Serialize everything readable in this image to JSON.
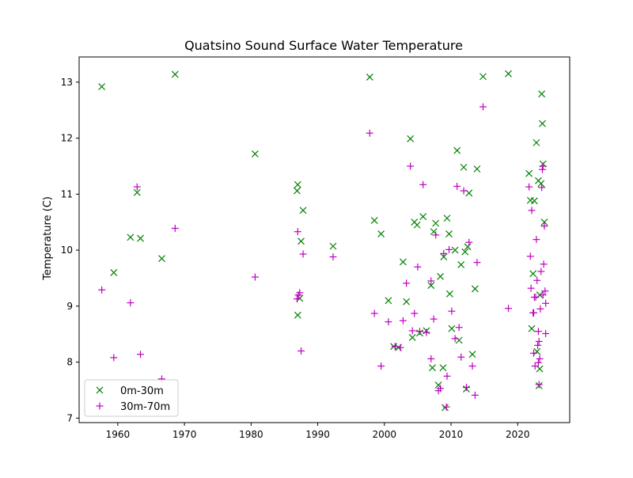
{
  "chart_data": {
    "type": "scatter",
    "title": "Quatsino Sound Surface Water Temperature",
    "xlabel": "",
    "ylabel": "Temperature (C)",
    "xlim": [
      1954.2,
      2027.8
    ],
    "ylim": [
      6.92,
      13.45
    ],
    "x_ticks": [
      1960,
      1970,
      1980,
      1990,
      2000,
      2010,
      2020
    ],
    "y_ticks": [
      7,
      8,
      9,
      10,
      11,
      12,
      13
    ],
    "grid": false,
    "legend_position": "lower-left",
    "series": [
      {
        "name": "0m-30m",
        "color": "#008000",
        "marker": "x",
        "points": [
          [
            1957.6,
            12.92
          ],
          [
            1959.4,
            9.6
          ],
          [
            1961.9,
            10.23
          ],
          [
            1962.9,
            11.03
          ],
          [
            1963.4,
            10.21
          ],
          [
            1966.6,
            9.85
          ],
          [
            1968.6,
            13.14
          ],
          [
            1980.6,
            11.72
          ],
          [
            1986.9,
            11.06
          ],
          [
            1987.0,
            11.17
          ],
          [
            1987.0,
            8.84
          ],
          [
            1987.3,
            9.14
          ],
          [
            1987.5,
            10.16
          ],
          [
            1987.8,
            10.71
          ],
          [
            1992.3,
            10.07
          ],
          [
            1997.8,
            13.09
          ],
          [
            1998.5,
            10.53
          ],
          [
            1999.5,
            10.29
          ],
          [
            2000.6,
            9.1
          ],
          [
            2001.4,
            8.28
          ],
          [
            2002.1,
            8.26
          ],
          [
            2002.8,
            9.79
          ],
          [
            2003.3,
            9.08
          ],
          [
            2003.9,
            11.99
          ],
          [
            2004.2,
            8.44
          ],
          [
            2004.5,
            10.5
          ],
          [
            2004.9,
            10.45
          ],
          [
            2005.3,
            8.52
          ],
          [
            2005.8,
            10.6
          ],
          [
            2006.3,
            8.56
          ],
          [
            2007.0,
            9.37
          ],
          [
            2007.4,
            10.33
          ],
          [
            2007.7,
            10.48
          ],
          [
            2008.1,
            7.59
          ],
          [
            2008.4,
            9.53
          ],
          [
            2008.9,
            9.88
          ],
          [
            2009.4,
            10.57
          ],
          [
            2009.7,
            10.29
          ],
          [
            2010.1,
            8.6
          ],
          [
            2010.6,
            10.0
          ],
          [
            2010.9,
            11.78
          ],
          [
            2011.2,
            8.39
          ],
          [
            2011.5,
            9.74
          ],
          [
            2011.9,
            11.48
          ],
          [
            2012.3,
            7.52
          ],
          [
            2012.7,
            11.02
          ],
          [
            2013.2,
            8.14
          ],
          [
            2013.6,
            9.31
          ],
          [
            2013.9,
            11.45
          ],
          [
            2014.8,
            13.1
          ],
          [
            2018.6,
            13.15
          ],
          [
            2021.7,
            11.37
          ],
          [
            2021.9,
            10.89
          ],
          [
            2022.1,
            8.6
          ],
          [
            2022.3,
            9.58
          ],
          [
            2022.5,
            10.88
          ],
          [
            2022.8,
            11.92
          ],
          [
            2022.9,
            8.19
          ],
          [
            2023.1,
            11.24
          ],
          [
            2023.2,
            7.58
          ],
          [
            2023.3,
            7.88
          ],
          [
            2023.5,
            11.19
          ],
          [
            2023.6,
            12.79
          ],
          [
            2023.7,
            12.26
          ],
          [
            2023.8,
            11.54
          ],
          [
            2024.0,
            10.5
          ],
          [
            2023.3,
            9.2
          ],
          [
            2008.8,
            7.9
          ],
          [
            2012.1,
            9.97
          ],
          [
            2009.1,
            7.19
          ],
          [
            2012.5,
            10.06
          ],
          [
            2007.2,
            7.9
          ],
          [
            2009.8,
            9.22
          ]
        ]
      },
      {
        "name": "30m-70m",
        "color": "#bf00bf",
        "marker": "+",
        "points": [
          [
            1957.6,
            9.29
          ],
          [
            1959.4,
            8.08
          ],
          [
            1961.9,
            9.06
          ],
          [
            1962.9,
            11.13
          ],
          [
            1963.4,
            8.14
          ],
          [
            1966.6,
            7.7
          ],
          [
            1968.6,
            10.39
          ],
          [
            1980.6,
            9.52
          ],
          [
            1986.9,
            9.13
          ],
          [
            1987.0,
            10.33
          ],
          [
            1987.1,
            9.2
          ],
          [
            1987.3,
            9.24
          ],
          [
            1987.5,
            8.2
          ],
          [
            1987.8,
            9.93
          ],
          [
            1992.3,
            9.88
          ],
          [
            1997.8,
            12.09
          ],
          [
            1998.5,
            8.87
          ],
          [
            1999.5,
            7.93
          ],
          [
            2000.6,
            8.72
          ],
          [
            2001.6,
            8.28
          ],
          [
            2002.4,
            8.26
          ],
          [
            2002.8,
            8.74
          ],
          [
            2003.3,
            9.41
          ],
          [
            2003.9,
            11.5
          ],
          [
            2004.2,
            8.56
          ],
          [
            2004.5,
            8.87
          ],
          [
            2005.0,
            9.7
          ],
          [
            2005.3,
            8.55
          ],
          [
            2005.8,
            11.17
          ],
          [
            2006.3,
            8.53
          ],
          [
            2007.0,
            8.06
          ],
          [
            2007.4,
            8.77
          ],
          [
            2007.7,
            10.27
          ],
          [
            2008.1,
            7.49
          ],
          [
            2008.4,
            7.53
          ],
          [
            2008.9,
            9.94
          ],
          [
            2009.4,
            7.75
          ],
          [
            2009.7,
            10.01
          ],
          [
            2010.1,
            8.91
          ],
          [
            2010.6,
            8.42
          ],
          [
            2010.9,
            11.14
          ],
          [
            2011.2,
            8.62
          ],
          [
            2011.5,
            8.09
          ],
          [
            2011.9,
            11.06
          ],
          [
            2012.3,
            7.55
          ],
          [
            2012.7,
            10.14
          ],
          [
            2013.2,
            7.93
          ],
          [
            2013.6,
            7.41
          ],
          [
            2013.9,
            9.78
          ],
          [
            2014.8,
            12.56
          ],
          [
            2018.6,
            8.96
          ],
          [
            2021.7,
            11.13
          ],
          [
            2021.9,
            9.89
          ],
          [
            2022.1,
            10.71
          ],
          [
            2022.3,
            8.88
          ],
          [
            2022.5,
            9.16
          ],
          [
            2022.8,
            10.19
          ],
          [
            2022.9,
            9.46
          ],
          [
            2023.1,
            8.55
          ],
          [
            2023.2,
            8.37
          ],
          [
            2023.3,
            8.06
          ],
          [
            2023.5,
            9.62
          ],
          [
            2023.6,
            11.12
          ],
          [
            2023.7,
            11.44
          ],
          [
            2023.8,
            11.5
          ],
          [
            2024.0,
            10.43
          ],
          [
            2023.9,
            9.75
          ],
          [
            2023.8,
            9.2
          ],
          [
            2024.1,
            9.27
          ],
          [
            2024.2,
            9.05
          ],
          [
            2024.2,
            8.51
          ],
          [
            2022.4,
            8.16
          ],
          [
            2022.6,
            7.93
          ],
          [
            2023.1,
            7.99
          ],
          [
            2022.0,
            9.32
          ],
          [
            2023.4,
            8.95
          ],
          [
            2009.3,
            7.2
          ],
          [
            2023.0,
            8.3
          ],
          [
            2022.4,
            8.88
          ],
          [
            2023.2,
            7.6
          ],
          [
            2022.7,
            9.16
          ],
          [
            2007.0,
            9.45
          ]
        ]
      }
    ]
  }
}
